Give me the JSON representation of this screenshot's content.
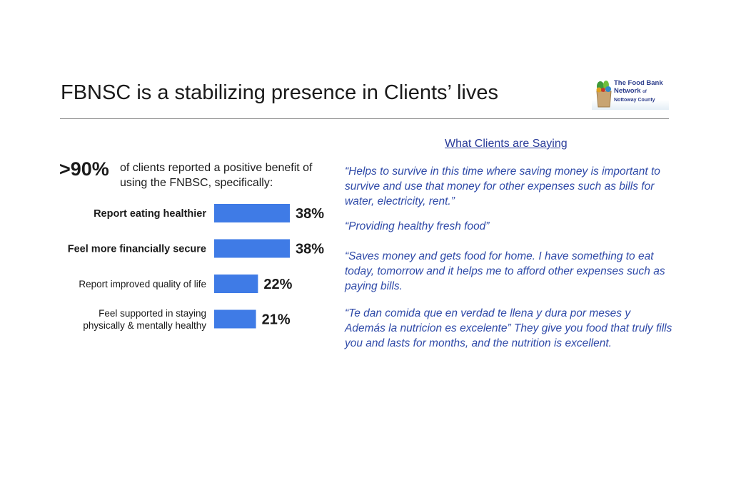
{
  "slide": {
    "title": "FBNSC is a stabilizing presence in Clients’ lives",
    "logo": {
      "line1": "The Food Bank",
      "line2_main": "Network",
      "line2_small": "of",
      "line3": "Nottoway County",
      "icon": "grocery-bag-icon"
    },
    "stat": {
      "value": ">90%",
      "description": "of clients reported a positive benefit of using the FNBSC, specifically:"
    },
    "quotes_heading": "What Clients are Saying",
    "quotes": [
      "“Helps to survive in this time where saving money is important to survive and use that money for other expenses such as bills for water, electricity, rent.”",
      "“Providing healthy fresh food”",
      "“Saves money and gets food for home. I have something to eat today, tomorrow and it helps me to afford other expenses such as paying bills.",
      "“Te dan comida que en verdad te llena y dura por meses y Además la nutricion es excelente”  They give you food that truly fills you and lasts for months, and the nutrition is excellent."
    ]
  },
  "chart_data": {
    "type": "bar",
    "orientation": "horizontal",
    "categories": [
      "Report eating healthier",
      "Feel more financially secure",
      "Report improved quality of life",
      "Feel supported in staying physically & mentally healthy"
    ],
    "category_lines": [
      [
        "Report eating healthier"
      ],
      [
        "Feel more financially secure"
      ],
      [
        "Report improved quality of life"
      ],
      [
        "Feel supported in staying",
        "physically & mentally healthy"
      ]
    ],
    "category_bold": [
      true,
      true,
      false,
      false
    ],
    "values": [
      38,
      38,
      22,
      21
    ],
    "value_labels": [
      "38%",
      "38%",
      "22%",
      "21%"
    ],
    "unit": "%",
    "bar_color": "#3f7be6",
    "xlim": [
      0,
      38
    ],
    "grid": false,
    "legend": "none"
  }
}
